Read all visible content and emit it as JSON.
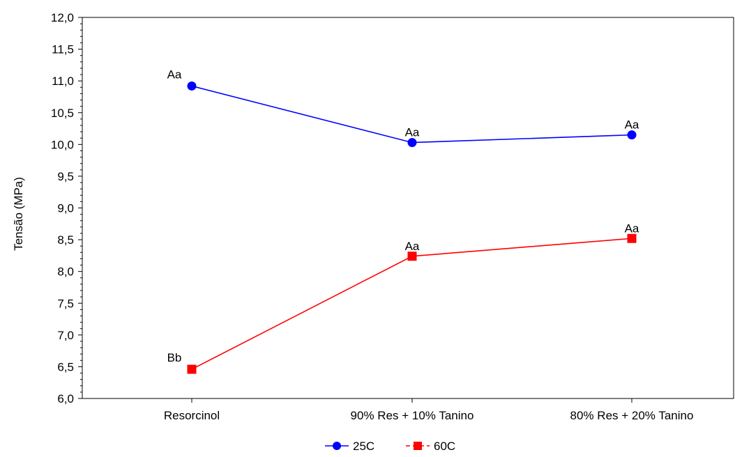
{
  "chart_data": {
    "type": "line",
    "ylabel": "Tensão (MPa)",
    "xlabel": "",
    "categories": [
      "Resorcinol",
      "90% Res + 10% Tanino",
      "80% Res + 20% Tanino"
    ],
    "ylim": [
      6.0,
      12.0
    ],
    "yticks": [
      6.0,
      6.5,
      7.0,
      7.5,
      8.0,
      8.5,
      9.0,
      9.5,
      10.0,
      10.5,
      11.0,
      11.5,
      12.0
    ],
    "ytick_labels": [
      "6,0",
      "6,5",
      "7,0",
      "7,5",
      "8,0",
      "8,5",
      "9,0",
      "9,5",
      "10,0",
      "10,5",
      "11,0",
      "11,5",
      "12,0"
    ],
    "grid": true,
    "legend_position": "bottom-center",
    "series": [
      {
        "name": "25C",
        "color": "#0000ff",
        "marker": "circle",
        "values": [
          10.92,
          10.03,
          10.15
        ],
        "annotations": [
          "Aa",
          "Aa",
          "Aa"
        ]
      },
      {
        "name": "60C",
        "color": "#ff0000",
        "marker": "square",
        "values": [
          6.46,
          8.24,
          8.52
        ],
        "annotations": [
          "Bb",
          "Aa",
          "Aa"
        ]
      }
    ]
  }
}
